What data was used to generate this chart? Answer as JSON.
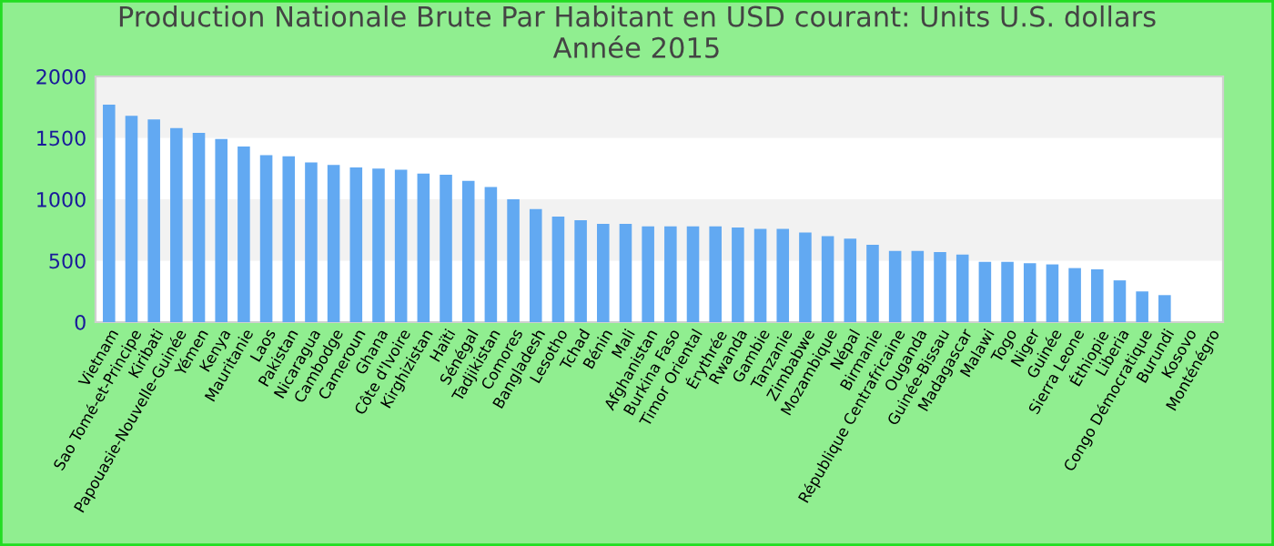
{
  "chart_data": {
    "type": "bar",
    "title": "Production Nationale Brute Par Habitant en USD courant: Units U.S. dollars\nAnnée 2015",
    "categories": [
      "Vietnam",
      "Sao Tomé-et-Principe",
      "Kiribati",
      "Papouasie-Nouvelle-Guinée",
      "Yémen",
      "Kenya",
      "Mauritanie",
      "Laos",
      "Pakistan",
      "Nicaragua",
      "Cambodge",
      "Cameroun",
      "Ghana",
      "Côte d'Ivoire",
      "Kirghizistan",
      "Haïti",
      "Sénégal",
      "Tadjikistan",
      "Comores",
      "Bangladesh",
      "Lesotho",
      "Tchad",
      "Bénin",
      "Mali",
      "Afghanistan",
      "Burkina Faso",
      "Timor Oriental",
      "Érythrée",
      "Rwanda",
      "Gambie",
      "Tanzanie",
      "Zimbabwe",
      "Mozambique",
      "Népal",
      "Birmanie",
      "République Centrafricaine",
      "Ouganda",
      "Guinée-Bissau",
      "Madagascar",
      "Malawi",
      "Togo",
      "Niger",
      "Guinée",
      "Sierra Leone",
      "Éthiopie",
      "Liberia",
      "Congo Démocratique",
      "Burundi",
      "Kosovo",
      "Monténégro"
    ],
    "values": [
      1770,
      1680,
      1650,
      1580,
      1540,
      1490,
      1430,
      1360,
      1350,
      1300,
      1280,
      1260,
      1250,
      1240,
      1210,
      1200,
      1150,
      1100,
      1000,
      920,
      860,
      830,
      800,
      800,
      780,
      780,
      780,
      780,
      770,
      760,
      760,
      730,
      700,
      680,
      630,
      580,
      580,
      570,
      550,
      490,
      490,
      480,
      470,
      440,
      430,
      340,
      250,
      220,
      null,
      null
    ],
    "color": "#62a9f2",
    "ylim": [
      0,
      2000
    ],
    "yticks": [
      0,
      500,
      1000,
      1500,
      2000
    ],
    "bands": [
      {
        "axis": "y",
        "from": 500,
        "to": 1000,
        "color": "#f2f2f2"
      },
      {
        "axis": "y",
        "from": 1500,
        "to": 2000,
        "color": "#f2f2f2"
      }
    ],
    "grid": false,
    "legend": false
  }
}
